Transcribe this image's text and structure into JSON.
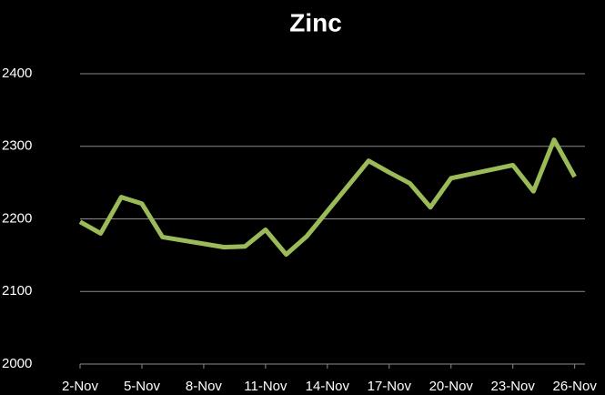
{
  "chart_data": {
    "type": "line",
    "title": "Zinc",
    "x": [
      2,
      3,
      4,
      5,
      6,
      9,
      10,
      11,
      12,
      13,
      16,
      17,
      18,
      19,
      20,
      23,
      24,
      25,
      26
    ],
    "series": [
      {
        "name": "Zinc",
        "color": "#9bbb59",
        "values": [
          2196,
          2180,
          2230,
          2221,
          2175,
          2161,
          2162,
          2185,
          2151,
          2176,
          2280,
          2264,
          2249,
          2216,
          2256,
          2274,
          2238,
          2309,
          2258
        ]
      }
    ],
    "xlim": [
      2,
      26.5
    ],
    "xticks": [
      {
        "value": 2,
        "label": "2-Nov"
      },
      {
        "value": 5,
        "label": "5-Nov"
      },
      {
        "value": 8,
        "label": "8-Nov"
      },
      {
        "value": 11,
        "label": "11-Nov"
      },
      {
        "value": 14,
        "label": "14-Nov"
      },
      {
        "value": 17,
        "label": "17-Nov"
      },
      {
        "value": 20,
        "label": "20-Nov"
      },
      {
        "value": 23,
        "label": "23-Nov"
      },
      {
        "value": 26,
        "label": "26-Nov"
      }
    ],
    "ylim": [
      2000,
      2400
    ],
    "yticks": [
      2000,
      2100,
      2200,
      2300,
      2400
    ],
    "grid": true
  }
}
